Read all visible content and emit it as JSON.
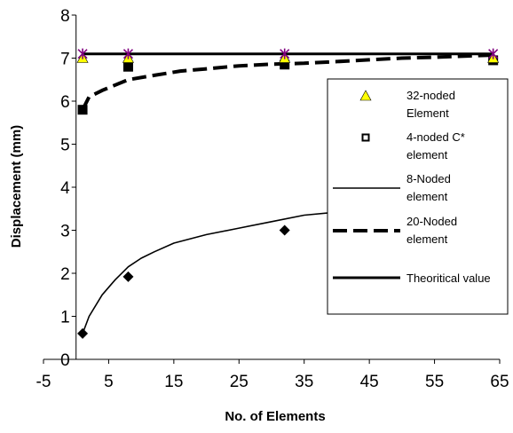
{
  "chart_data": {
    "type": "line",
    "title": "",
    "xlabel": "No. of Elements",
    "ylabel": "Displacement (mm)",
    "xlim": [
      -5,
      65
    ],
    "ylim": [
      0,
      8
    ],
    "xticks": [
      "-5",
      "5",
      "15",
      "25",
      "35",
      "45",
      "55",
      "65"
    ],
    "yticks": [
      "0",
      "1",
      "2",
      "3",
      "4",
      "5",
      "6",
      "7",
      "8"
    ],
    "grid": false,
    "legend_position": "right",
    "series": [
      {
        "name": "32-noded Element",
        "style": "marker-triangle",
        "color": "#ffff00",
        "x": [
          1,
          8,
          32,
          64
        ],
        "y": [
          7.0,
          7.0,
          7.0,
          7.0
        ]
      },
      {
        "name": "4-noded C* element",
        "style": "marker-square",
        "color": "#000000",
        "x": [
          1,
          8,
          32,
          64
        ],
        "y": [
          5.8,
          6.8,
          6.85,
          6.95
        ]
      },
      {
        "name": "8-Noded element",
        "style": "line-thin",
        "color": "#000000",
        "x": [
          1,
          2,
          4,
          6,
          8,
          10,
          12,
          15,
          20,
          25,
          30,
          35,
          40,
          45
        ],
        "y": [
          0.6,
          1.0,
          1.5,
          1.85,
          2.15,
          2.35,
          2.5,
          2.7,
          2.9,
          3.05,
          3.2,
          3.35,
          3.42,
          3.5
        ]
      },
      {
        "name": "8-Noded markers",
        "style": "marker-diamond",
        "color": "#000000",
        "x": [
          1,
          8,
          32
        ],
        "y": [
          0.6,
          1.92,
          3.0
        ]
      },
      {
        "name": "20-Noded element",
        "style": "line-dashed",
        "color": "#000000",
        "x": [
          1,
          2,
          4,
          8,
          12,
          16,
          20,
          25,
          30,
          35,
          40,
          45,
          50,
          55,
          60,
          64
        ],
        "y": [
          5.8,
          6.1,
          6.25,
          6.5,
          6.6,
          6.7,
          6.75,
          6.82,
          6.86,
          6.88,
          6.92,
          6.96,
          7.0,
          7.02,
          7.05,
          7.07
        ]
      },
      {
        "name": "Theoritical value",
        "style": "line-thick",
        "color": "#000000",
        "x": [
          1,
          64
        ],
        "y": [
          7.1,
          7.1
        ]
      },
      {
        "name": "Theoritical markers",
        "style": "marker-star",
        "color": "#800080",
        "x": [
          1,
          8,
          32,
          64
        ],
        "y": [
          7.1,
          7.1,
          7.1,
          7.1
        ]
      }
    ],
    "legend": [
      {
        "label_lines": [
          "32-noded",
          "Element"
        ],
        "swatch": "marker-triangle",
        "color": "#ffff00"
      },
      {
        "label_lines": [
          "4-noded C*",
          "element"
        ],
        "swatch": "marker-square-open",
        "color": "#000000"
      },
      {
        "label_lines": [
          "8-Noded",
          "element"
        ],
        "swatch": "line-thin",
        "color": "#000000"
      },
      {
        "label_lines": [
          "20-Noded",
          "element"
        ],
        "swatch": "line-dashed",
        "color": "#000000"
      },
      {
        "label_lines": [
          "Theoritical value"
        ],
        "swatch": "line-thick",
        "color": "#000000"
      }
    ]
  }
}
